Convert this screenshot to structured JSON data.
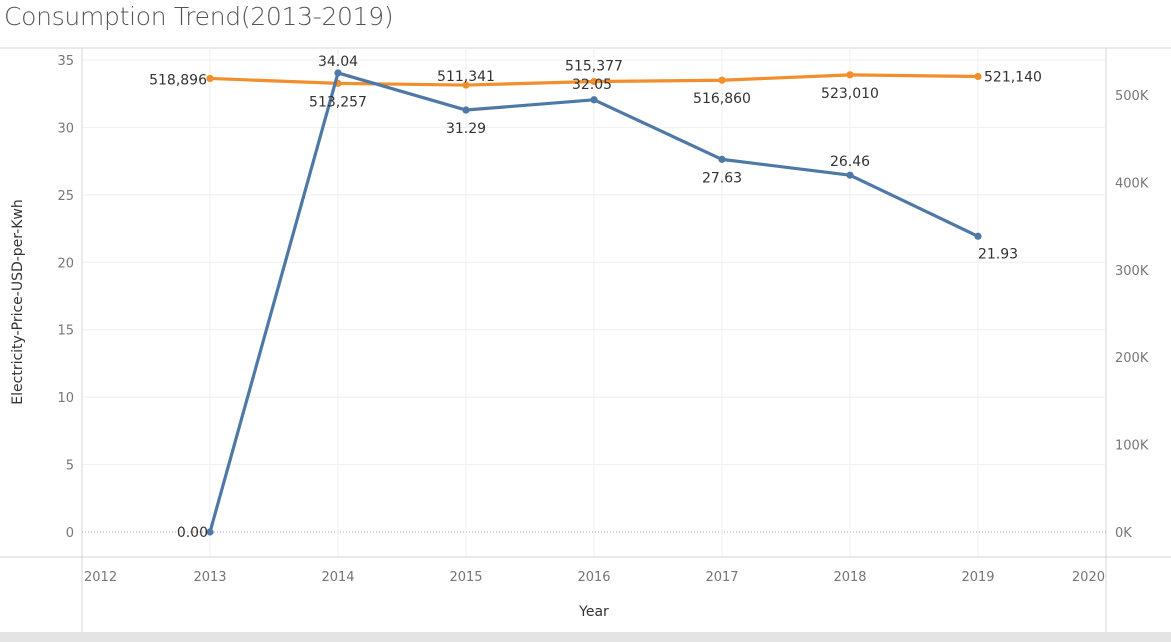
{
  "chart_data": {
    "type": "line",
    "title": "Consumption Trend(2013-2019)",
    "xlabel": "Year",
    "ylabel": "Electricity-Price-USD-per-Kwh",
    "x_ticks": [
      "2012",
      "2013",
      "2014",
      "2015",
      "2016",
      "2017",
      "2018",
      "2019",
      "2020"
    ],
    "x_range": [
      2012,
      2020
    ],
    "y_left_ticks": [
      "0",
      "5",
      "10",
      "15",
      "20",
      "25",
      "30",
      "35"
    ],
    "y_left_range": [
      0,
      35
    ],
    "y_right_ticks": [
      "0K",
      "100K",
      "200K",
      "300K",
      "400K",
      "500K"
    ],
    "y_right_range": [
      0,
      540000
    ],
    "grid": true,
    "legend": "none",
    "x": [
      2013,
      2014,
      2015,
      2016,
      2017,
      2018,
      2019
    ],
    "series": [
      {
        "name": "Electricity-Price-USD-per-Kwh",
        "axis": "left",
        "color": "#4e79a7",
        "values": [
          0.0,
          34.04,
          31.29,
          32.05,
          27.63,
          26.46,
          21.93
        ],
        "labels": [
          "0.00",
          "34.04",
          "31.29",
          "32.05",
          "27.63",
          "26.46",
          "21.93"
        ]
      },
      {
        "axis": "right",
        "color": "#f28e2b",
        "values": [
          518896,
          513257,
          511341,
          515377,
          516860,
          523010,
          521140
        ],
        "labels": [
          "518,896",
          "513,257",
          "511,341",
          "515,377",
          "516,860",
          "523,010",
          "521,140"
        ]
      }
    ]
  }
}
